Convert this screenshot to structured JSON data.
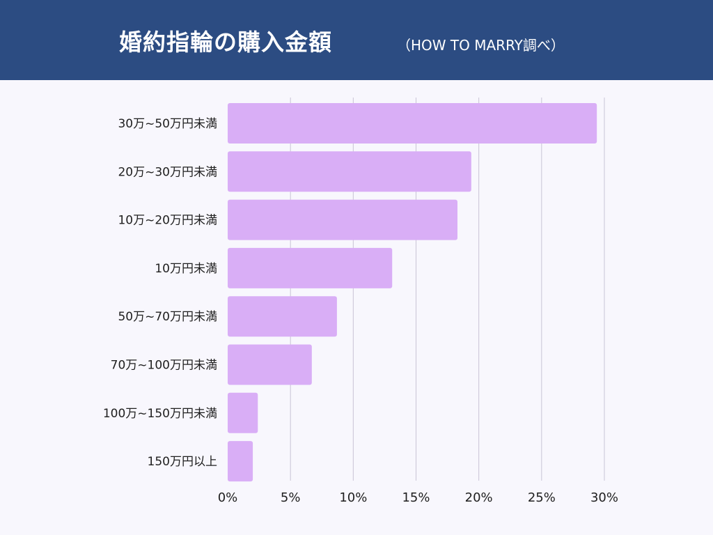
{
  "header": {
    "title": "婚約指輪の購入金額",
    "subtitle": "（HOW TO MARRY調べ）"
  },
  "colors": {
    "header_bg": "#2c4c82",
    "bar": "#d9aef6",
    "grid": "#c9c4d6"
  },
  "chart_data": {
    "type": "bar",
    "orientation": "horizontal",
    "categories": [
      "30万~50万円未満",
      "20万~30万円未満",
      "10万~20万円未満",
      "10万円未満",
      "50万~70万円未満",
      "70万~100万円未満",
      "100万~150万円未満",
      "150万円以上"
    ],
    "values": [
      29.4,
      19.4,
      18.3,
      13.1,
      8.7,
      6.7,
      2.4,
      2.0
    ],
    "xlim": [
      0,
      30
    ],
    "xticks": [
      0,
      5,
      10,
      15,
      20,
      25,
      30
    ],
    "xtick_labels": [
      "0%",
      "5%",
      "10%",
      "15%",
      "20%",
      "25%",
      "30%"
    ],
    "grid": true
  }
}
